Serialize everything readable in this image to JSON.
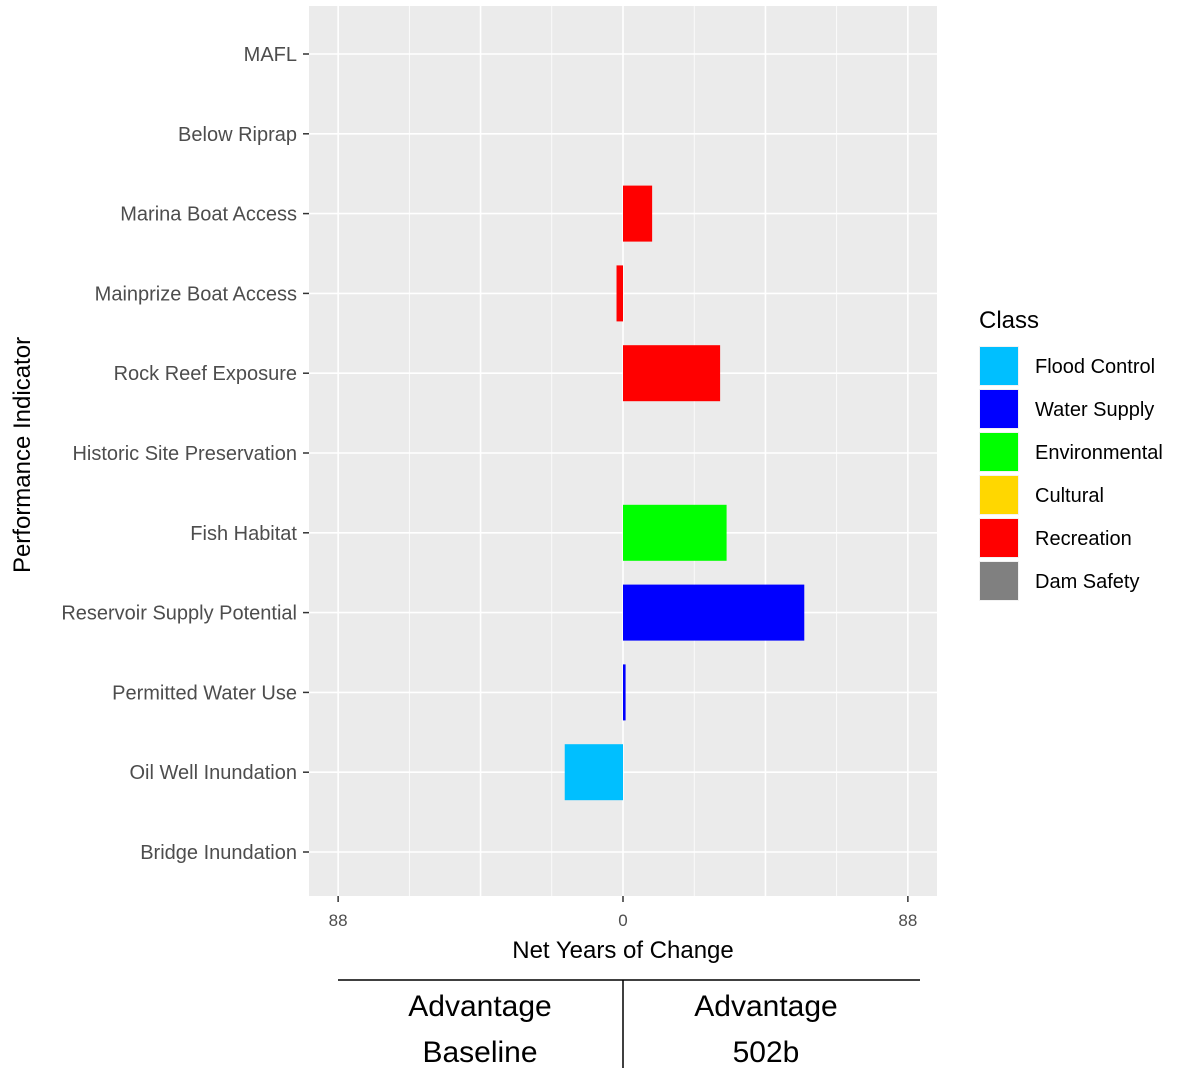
{
  "chart_data": {
    "type": "bar",
    "orientation": "horizontal",
    "categories": [
      "MAFL",
      "Below Riprap",
      "Marina Boat Access",
      "Mainprize Boat Access",
      "Rock Reef Exposure",
      "Historic Site Preservation",
      "Fish Habitat",
      "Reservoir Supply Potential",
      "Permitted Water Use",
      "Oil Well Inundation",
      "Bridge Inundation"
    ],
    "values": [
      0,
      0,
      9,
      -2,
      30,
      0,
      32,
      56,
      0.8,
      -18,
      0
    ],
    "classes": [
      "",
      "",
      "Recreation",
      "Recreation",
      "Recreation",
      "",
      "Environmental",
      "Water Supply",
      "Water Supply",
      "Flood Control",
      ""
    ],
    "xlabel": "Net Years of Change",
    "ylabel": "Performance Indicator",
    "xlim": [
      -97,
      97
    ],
    "x_ticks": [
      {
        "value": -88,
        "label": "88"
      },
      {
        "value": 0,
        "label": "0"
      },
      {
        "value": 88,
        "label": "88"
      }
    ],
    "grid": true,
    "legend": {
      "title": "Class",
      "placement": "right",
      "items": [
        {
          "label": "Flood Control",
          "color": "#00BFFF"
        },
        {
          "label": "Water Supply",
          "color": "#0000FF"
        },
        {
          "label": "Environmental",
          "color": "#00FF00"
        },
        {
          "label": "Cultural",
          "color": "#FFD700"
        },
        {
          "label": "Recreation",
          "color": "#FF0000"
        },
        {
          "label": "Dam Safety",
          "color": "#808080"
        }
      ]
    },
    "advantage": {
      "left_line1": "Advantage",
      "left_line2": "Baseline",
      "right_line1": "Advantage",
      "right_line2": "502b"
    }
  }
}
